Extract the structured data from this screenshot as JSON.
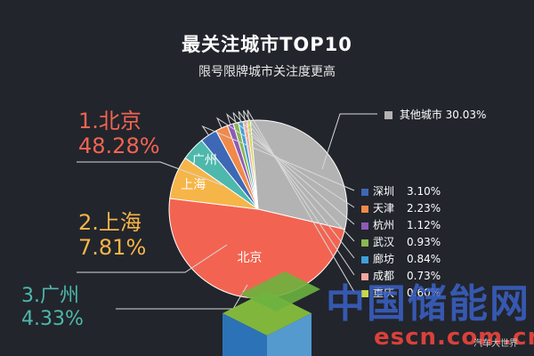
{
  "chart_data": {
    "type": "pie",
    "title": "最关注城市TOP10",
    "subtitle": "限号限牌城市关注度更高",
    "slices": [
      {
        "name": "北京",
        "value": 48.28,
        "label": "48.28%",
        "callout": "1.北京",
        "color": "#f26451"
      },
      {
        "name": "上海",
        "value": 7.81,
        "label": "7.81%",
        "callout": "2.上海",
        "color": "#f6b548"
      },
      {
        "name": "广州",
        "value": 4.33,
        "label": "4.33%",
        "callout": "3.广州",
        "color": "#4eb8ac"
      },
      {
        "name": "深圳",
        "value": 3.1,
        "label": "3.10%",
        "color": "#3e68b5"
      },
      {
        "name": "天津",
        "value": 2.23,
        "label": "2.23%",
        "color": "#f08a4b"
      },
      {
        "name": "杭州",
        "value": 1.12,
        "label": "1.12%",
        "color": "#8e5bb5"
      },
      {
        "name": "武汉",
        "value": 0.93,
        "label": "0.93%",
        "color": "#8ab651"
      },
      {
        "name": "廊坊",
        "value": 0.84,
        "label": "0.84%",
        "color": "#3fa0d8"
      },
      {
        "name": "成都",
        "value": 0.73,
        "label": "0.73%",
        "color": "#f4a7a0"
      },
      {
        "name": "重庆",
        "value": 0.6,
        "label": "0.60%",
        "color": "#c6d94a"
      },
      {
        "name": "其他城市",
        "value": 30.03,
        "label": "30.03%",
        "color": "#b3b3b3"
      }
    ]
  },
  "watermark": {
    "main": "中国储能网",
    "sub": "escn.com.cn"
  },
  "credit": "汽车大世界",
  "colors": {
    "background": "#22252c",
    "leader_line": "#d9d9d9"
  }
}
